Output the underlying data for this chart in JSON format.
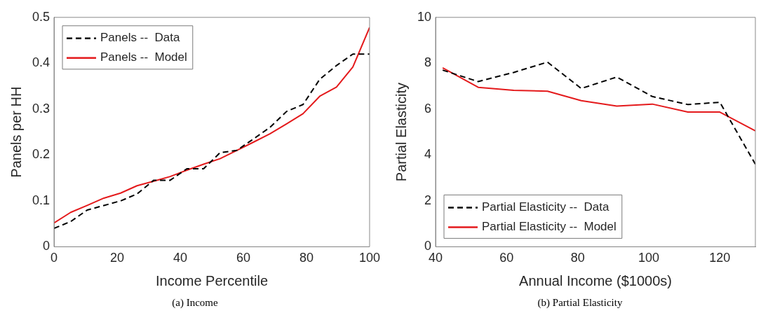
{
  "chart_data": [
    {
      "type": "line",
      "title": "(a) Income",
      "xlabel": "Income Percentile",
      "ylabel": "Panels per HH",
      "xlim": [
        0,
        100
      ],
      "xticks": [
        0,
        20,
        40,
        60,
        80,
        100
      ],
      "ylim": [
        0,
        0.5
      ],
      "yticks": [
        0,
        0.1,
        0.2,
        0.3,
        0.4,
        0.5
      ],
      "grid": false,
      "legend": "top left",
      "x": [
        0,
        5.3,
        10.5,
        15.8,
        21.1,
        26.3,
        31.6,
        36.8,
        42.1,
        47.4,
        52.6,
        57.9,
        63.2,
        68.4,
        73.7,
        78.9,
        84.2,
        89.5,
        94.7,
        100
      ],
      "series": [
        {
          "name": "Panels --  Data",
          "color": "#000000",
          "line_style": "dashed",
          "values": [
            0.04,
            0.055,
            0.08,
            0.09,
            0.1,
            0.115,
            0.145,
            0.145,
            0.17,
            0.17,
            0.205,
            0.21,
            0.235,
            0.26,
            0.295,
            0.31,
            0.365,
            0.395,
            0.42,
            0.42
          ]
        },
        {
          "name": "Panels --  Model",
          "color": "#e41a1c",
          "line_style": "solid",
          "values": [
            0.052,
            0.075,
            0.09,
            0.106,
            0.117,
            0.133,
            0.143,
            0.153,
            0.167,
            0.18,
            0.192,
            0.21,
            0.228,
            0.246,
            0.268,
            0.29,
            0.328,
            0.348,
            0.392,
            0.478
          ]
        }
      ]
    },
    {
      "type": "line",
      "title": "(b) Partial Elasticity",
      "xlabel": "Annual Income ($1000s)",
      "ylabel": "Partial Elasticity",
      "xlim": [
        40,
        130
      ],
      "xticks": [
        40,
        60,
        80,
        100,
        120
      ],
      "ylim": [
        0,
        10
      ],
      "yticks": [
        0,
        2,
        4,
        6,
        8,
        10
      ],
      "grid": false,
      "legend": "bottom left",
      "x": [
        42,
        52,
        62,
        71.5,
        81,
        91,
        101,
        111,
        120,
        130
      ],
      "series": [
        {
          "name": "Partial Elasticity --  Data",
          "color": "#000000",
          "line_style": "dashed",
          "values": [
            7.7,
            7.2,
            7.6,
            8.05,
            6.9,
            7.4,
            6.55,
            6.2,
            6.3,
            3.6
          ]
        },
        {
          "name": "Partial Elasticity --  Model",
          "color": "#e41a1c",
          "line_style": "solid",
          "values": [
            7.8,
            6.95,
            6.82,
            6.78,
            6.37,
            6.13,
            6.22,
            5.87,
            5.87,
            5.05
          ]
        }
      ]
    }
  ]
}
